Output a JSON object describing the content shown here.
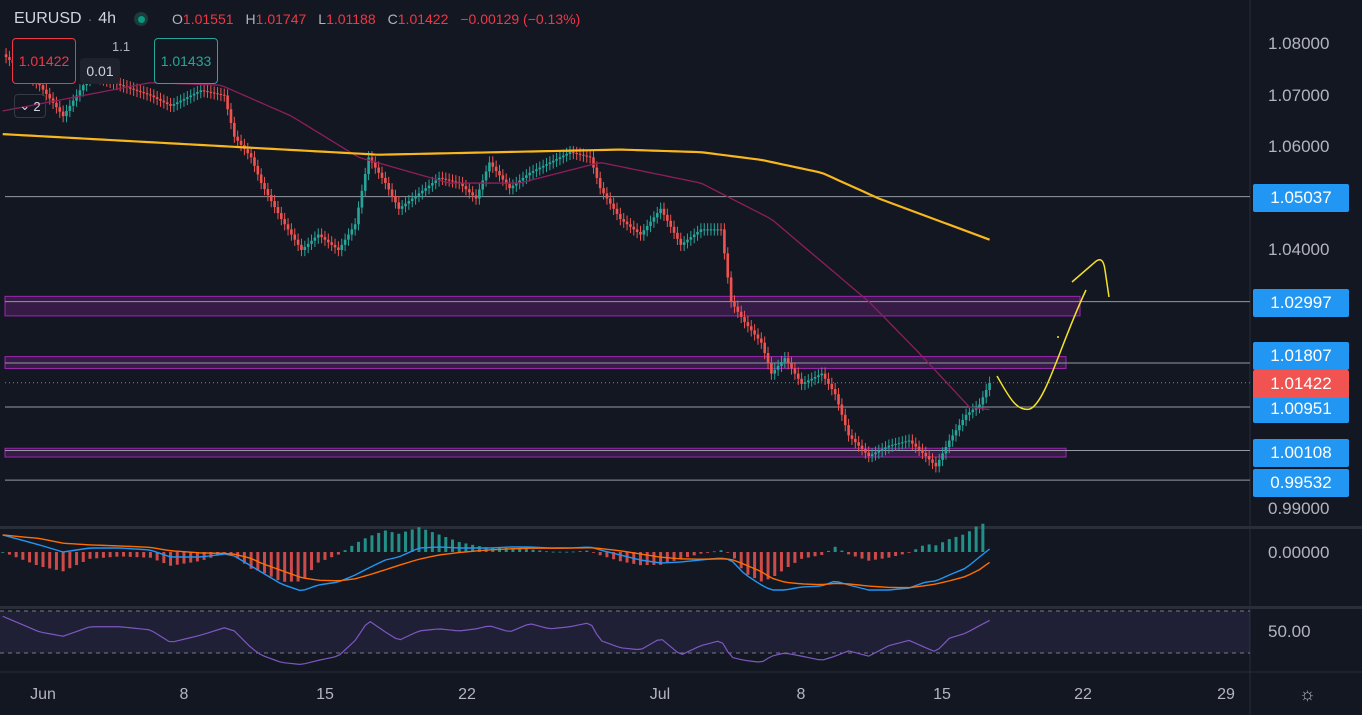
{
  "header": {
    "symbol": "EURUSD",
    "separator": "·",
    "interval": "4h",
    "open_label": "O",
    "open": "1.01551",
    "high_label": "H",
    "high": "1.01747",
    "low_label": "L",
    "low": "1.01188",
    "close_label": "C",
    "close": "1.01422",
    "change": "−0.00129 (−0.13%)",
    "market_status_icon": "market-open-dot"
  },
  "trade_panel": {
    "sell_price": "1.01422",
    "buy_price": "1.01433",
    "spread": "1.1",
    "quantity": "0.01"
  },
  "indicators_toggle": {
    "icon": "chevron-down-icon",
    "count": "2"
  },
  "colors": {
    "background": "#131722",
    "up": "#26a69a",
    "down": "#ef5350",
    "level_line": "#2196f3",
    "current_price": "#f05350",
    "ma_long": "#f7b71d",
    "ma_short": "#8e1e5c",
    "zone": "#9c27b0",
    "drawing": "#f5e12a",
    "macd": "#2196f3",
    "signal": "#ff6d00",
    "rsi": "#7e57c2"
  },
  "price_axis": {
    "ticks": [
      "1.08000",
      "1.07000",
      "1.06000",
      "1.04000",
      "0.99000"
    ],
    "levels": [
      "1.05037",
      "1.02997",
      "1.01807",
      "1.00951",
      "1.00108",
      "0.99532"
    ],
    "current_price": "1.01422"
  },
  "time_axis": {
    "ticks": [
      "Jun",
      "8",
      "15",
      "22",
      "Jul",
      "8",
      "15",
      "22",
      "29"
    ],
    "settings_icon": "gear-icon"
  },
  "macd_axis": {
    "ticks": [
      "0.00000"
    ]
  },
  "rsi_axis": {
    "ticks": [
      "50.00"
    ]
  },
  "chart_data": {
    "type": "candlestick",
    "symbol": "EURUSD",
    "timeframe": "4h",
    "ylim": [
      0.9875,
      1.0875
    ],
    "grid": false,
    "points": {
      "dates": [
        "May 30 00:00",
        "May 31 20:00",
        "Jun 2 00:00",
        "Jun 3 08:00",
        "Jun 4 20:00",
        "Jun 6 08:00",
        "Jun 7 08:00",
        "Jun 8 20:00",
        "Jun 10 00:00",
        "Jun 10 12:00",
        "Jun 11 08:00",
        "Jun 11 20:00",
        "Jun 12 20:00",
        "Jun 13 20:00",
        "Jun 14 16:00",
        "Jun 15 16:00",
        "Jun 16 12:00",
        "Jun 17 04:00",
        "Jun 18 00:00",
        "Jun 18 16:00",
        "Jun 19 16:00",
        "Jun 20 16:00",
        "Jun 21 16:00",
        "Jun 22 12:00",
        "Jun 23 04:00",
        "Jun 24 04:00",
        "Jun 25 04:00",
        "Jun 26 04:00",
        "Jun 27 04:00",
        "Jun 28 04:00",
        "Jun 28 16:00",
        "Jun 29 16:00",
        "Jun 30 16:00",
        "Jul 1 16:00",
        "Jul 2 16:00",
        "Jul 3 16:00",
        "Jul 4 16:00",
        "Jul 5 04:00",
        "Jul 5 20:00",
        "Jul 6 16:00",
        "Jul 7 04:00",
        "Jul 7 20:00",
        "Jul 8 16:00",
        "Jul 9 16:00",
        "Jul 10 08:00",
        "Jul 11 00:00",
        "Jul 12 00:00",
        "Jul 13 00:00",
        "Jul 14 00:00",
        "Jul 14 20:00",
        "Jul 15 08:00",
        "Jul 16 00:00",
        "Jul 16 20:00",
        "Jul 17 12:00",
        "Jul 18 00:00"
      ],
      "close": [
        1.078,
        1.072,
        1.066,
        1.074,
        1.072,
        1.07,
        1.068,
        1.071,
        1.07,
        1.062,
        1.058,
        1.053,
        1.046,
        1.04,
        1.043,
        1.04,
        1.045,
        1.058,
        1.053,
        1.048,
        1.051,
        1.054,
        1.053,
        1.05,
        1.057,
        1.052,
        1.055,
        1.057,
        1.059,
        1.058,
        1.052,
        1.046,
        1.043,
        1.048,
        1.041,
        1.044,
        1.044,
        1.03,
        1.026,
        1.022,
        1.016,
        1.019,
        1.014,
        1.016,
        1.012,
        1.004,
        1.0,
        1.002,
        1.003,
        1.0,
        0.998,
        1.003,
        1.008,
        1.01,
        1.01422
      ],
      "macd": [
        0.0017,
        0.0007,
        0,
        0.0004,
        0.0004,
        0.0002,
        -0.0005,
        -0.0005,
        -0.0002,
        -0.0004,
        -0.0014,
        -0.002,
        -0.0032,
        -0.0039,
        -0.0033,
        -0.003,
        -0.0023,
        -0.0016,
        -0.0008,
        -0.0005,
        0.0004,
        0.0005,
        0.0004,
        0.0004,
        0.0004,
        0.0005,
        0.0005,
        0.0004,
        0.0004,
        0.0005,
        0.0002,
        -0.0003,
        -0.0008,
        -0.0011,
        -0.001,
        -0.0008,
        -0.0006,
        -0.0008,
        -0.0022,
        -0.0033,
        -0.0038,
        -0.0038,
        -0.0035,
        -0.0034,
        -0.0029,
        -0.0033,
        -0.0038,
        -0.0038,
        -0.0036,
        -0.003,
        -0.0029,
        -0.0023,
        -0.0016,
        -0.0005,
        0.0003
      ],
      "rsi": [
        65,
        50,
        46,
        55,
        55,
        52,
        40,
        47,
        54,
        51,
        35,
        28,
        21,
        19,
        23,
        27,
        42,
        61,
        50,
        42,
        51,
        53,
        51,
        53,
        56,
        50,
        58,
        53,
        55,
        59,
        42,
        35,
        33,
        44,
        28,
        37,
        42,
        26,
        23,
        21,
        27,
        30,
        27,
        23,
        27,
        32,
        27,
        37,
        42,
        35,
        31,
        44,
        49,
        56,
        61
      ]
    },
    "ma_long": {
      "dates": [
        "May 30 00:00",
        "Jun 17 16:00",
        "Jun 29 16:00",
        "Jul 3 16:00",
        "Jul 6 16:00",
        "Jul 9 16:00",
        "Jul 12 12:00",
        "Jul 18 00:00"
      ],
      "values": [
        1.0625,
        1.0585,
        1.0595,
        1.059,
        1.0575,
        1.055,
        1.05,
        1.042
      ]
    },
    "ma_short": {
      "dates": [
        "May 30 00:00",
        "Jun 6 08:00",
        "Jun 9 20:00",
        "Jun 13 08:00",
        "Jun 16 16:00",
        "Jun 21 04:00",
        "Jun 24 16:00",
        "Jun 28 16:00",
        "Jul 3 16:00",
        "Jul 7 04:00",
        "Jul 12 00:00",
        "Jul 14 12:00",
        "Jul 17 00:00",
        "Jul 18 00:00"
      ],
      "values": [
        1.067,
        1.0725,
        1.072,
        1.066,
        1.058,
        1.053,
        1.053,
        1.057,
        1.053,
        1.046,
        1.03,
        1.02,
        1.0095,
        1.009
      ]
    },
    "horizontal_levels": [
      1.05037,
      1.02997,
      1.01807,
      1.00951,
      1.00108,
      0.99532
    ],
    "zones": [
      [
        1.0272,
        1.031
      ],
      [
        1.017,
        1.0193
      ],
      [
        0.9998,
        1.0015
      ]
    ],
    "rsi_bands": [
      70,
      30
    ]
  }
}
